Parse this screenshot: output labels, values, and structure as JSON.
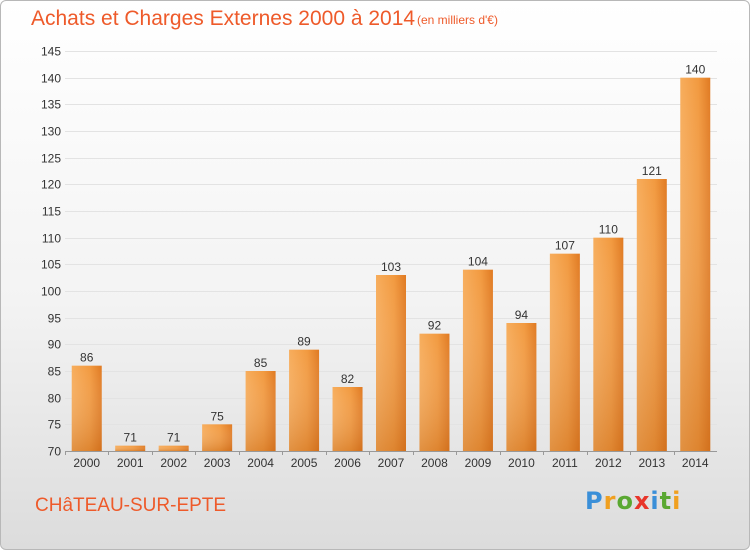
{
  "header": {
    "title": "Achats et Charges Externes 2000 à 2014",
    "subtitle": "(en milliers d'€)"
  },
  "footer": {
    "commune": "CHâTEAU-SUR-EPTE",
    "logo": "Proxiti"
  },
  "colors": {
    "title": "#ee5a2a",
    "bar_light": "#f6a44e",
    "bar_dark": "#d9731d",
    "grid": "#e3e3e3"
  },
  "chart_data": {
    "type": "bar",
    "title": "Achats et Charges Externes 2000 à 2014",
    "subtitle": "(en milliers d'€)",
    "categories": [
      "2000",
      "2001",
      "2002",
      "2003",
      "2004",
      "2005",
      "2006",
      "2007",
      "2008",
      "2009",
      "2010",
      "2011",
      "2012",
      "2013",
      "2014"
    ],
    "values": [
      86,
      71,
      71,
      75,
      85,
      89,
      82,
      103,
      92,
      104,
      94,
      107,
      110,
      121,
      140
    ],
    "ylim": [
      70,
      145
    ],
    "yticks": [
      70,
      75,
      80,
      85,
      90,
      95,
      100,
      105,
      110,
      115,
      120,
      125,
      130,
      135,
      140,
      145
    ],
    "grid": true,
    "data_labels": true
  }
}
